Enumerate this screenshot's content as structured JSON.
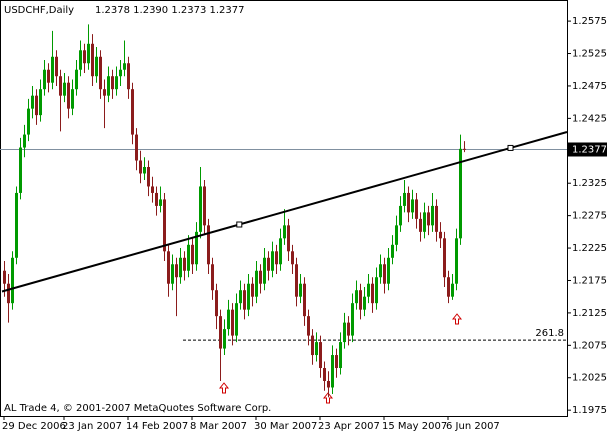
{
  "chart_data": {
    "type": "candlestick",
    "title": "USDCHF,Daily",
    "last_bar_label": "1.2378 1.2390 1.2373 1.2377",
    "footer": "AL Trade 4, © 2001-2007 MetaQuotes Software Corp.",
    "up_color": "#009a00",
    "down_color": "#8b1c1c",
    "categories": [
      "29 Dec 2006",
      null,
      null,
      null,
      null,
      null,
      null,
      null,
      null,
      null,
      null,
      null,
      null,
      null,
      null,
      "23 Jan 2007",
      null,
      null,
      null,
      null,
      null,
      null,
      null,
      null,
      null,
      null,
      null,
      null,
      null,
      null,
      null,
      "14 Feb 2007",
      null,
      null,
      null,
      null,
      null,
      null,
      null,
      null,
      null,
      null,
      null,
      null,
      null,
      null,
      null,
      "8 Mar 2007",
      null,
      null,
      null,
      null,
      null,
      null,
      null,
      null,
      null,
      null,
      null,
      null,
      null,
      null,
      null,
      "30 Mar 2007",
      null,
      null,
      null,
      null,
      null,
      null,
      null,
      null,
      null,
      null,
      null,
      null,
      null,
      null,
      null,
      "23 Apr 2007",
      null,
      null,
      null,
      null,
      null,
      null,
      null,
      null,
      null,
      null,
      null,
      null,
      null,
      null,
      null,
      "15 May 2007",
      null,
      null,
      null,
      null,
      null,
      null,
      null,
      null,
      null,
      null,
      null,
      null,
      null,
      null,
      null,
      "6 Jun 2007",
      null,
      null,
      null,
      null
    ],
    "open": [
      1.219,
      1.217,
      1.214,
      1.221,
      1.231,
      1.238,
      1.24,
      1.244,
      1.246,
      1.243,
      1.247,
      1.25,
      1.248,
      1.252,
      1.249,
      1.246,
      1.248,
      1.244,
      1.247,
      1.25,
      1.253,
      1.251,
      1.254,
      1.249,
      1.252,
      1.247,
      1.246,
      1.249,
      1.247,
      1.249,
      1.25,
      1.251,
      1.247,
      1.24,
      1.236,
      1.234,
      1.235,
      1.232,
      1.231,
      1.229,
      1.23,
      1.222,
      1.217,
      1.22,
      1.218,
      1.221,
      1.219,
      1.223,
      1.22,
      1.225,
      1.232,
      1.226,
      1.22,
      1.216,
      1.212,
      1.207,
      1.21,
      1.213,
      1.209,
      1.214,
      1.216,
      1.213,
      1.217,
      1.215,
      1.219,
      1.217,
      1.221,
      1.219,
      1.222,
      1.22,
      1.224,
      1.226,
      1.222,
      1.22,
      1.215,
      1.217,
      1.212,
      1.209,
      1.206,
      1.208,
      1.204,
      1.202,
      1.201,
      1.206,
      1.204,
      1.208,
      1.211,
      1.209,
      1.214,
      1.216,
      1.213,
      1.215,
      1.217,
      1.214,
      1.218,
      1.22,
      1.217,
      1.221,
      1.223,
      1.226,
      1.229,
      1.231,
      1.228,
      1.23,
      1.227,
      1.225,
      1.228,
      1.226,
      1.229,
      1.225,
      1.224,
      1.218,
      1.215,
      1.217,
      1.224,
      1.2378
    ],
    "high": [
      1.2205,
      1.2185,
      1.222,
      1.232,
      1.2395,
      1.2415,
      1.2455,
      1.2475,
      1.247,
      1.2485,
      1.2515,
      1.251,
      1.256,
      1.253,
      1.25,
      1.2495,
      1.249,
      1.2485,
      1.2515,
      1.2545,
      1.254,
      1.257,
      1.2555,
      1.2535,
      1.253,
      1.2485,
      1.2505,
      1.25,
      1.2505,
      1.2515,
      1.2545,
      1.252,
      1.248,
      1.241,
      1.2375,
      1.2365,
      1.236,
      1.2335,
      1.232,
      1.232,
      1.231,
      1.223,
      1.2215,
      1.221,
      1.2225,
      1.222,
      1.2245,
      1.224,
      1.2265,
      1.235,
      1.233,
      1.227,
      1.221,
      1.217,
      1.213,
      1.2115,
      1.2145,
      1.214,
      1.2155,
      1.2175,
      1.217,
      1.2185,
      1.218,
      1.2205,
      1.22,
      1.2225,
      1.222,
      1.2235,
      1.223,
      1.2255,
      1.2285,
      1.227,
      1.223,
      1.221,
      1.2185,
      1.218,
      1.213,
      1.21,
      1.2095,
      1.209,
      1.205,
      1.2035,
      1.2075,
      1.207,
      1.2095,
      1.2125,
      1.212,
      1.2155,
      1.2175,
      1.217,
      1.2165,
      1.2185,
      1.218,
      1.2195,
      1.2215,
      1.221,
      1.2225,
      1.2245,
      1.2275,
      1.2305,
      1.233,
      1.232,
      1.2315,
      1.231,
      1.228,
      1.2295,
      1.229,
      1.231,
      1.23,
      1.2265,
      1.225,
      1.219,
      1.2185,
      1.2255,
      1.24,
      1.239
    ],
    "low": [
      1.215,
      1.211,
      1.213,
      1.22,
      1.23,
      1.2365,
      1.239,
      1.2425,
      1.2415,
      1.242,
      1.246,
      1.2465,
      1.247,
      1.2475,
      1.2405,
      1.245,
      1.2425,
      1.243,
      1.246,
      1.249,
      1.2495,
      1.25,
      1.2475,
      1.248,
      1.2455,
      1.241,
      1.245,
      1.2455,
      1.246,
      1.2475,
      1.249,
      1.2455,
      1.2385,
      1.2345,
      1.2325,
      1.233,
      1.2305,
      1.2295,
      1.2275,
      1.228,
      1.2205,
      1.215,
      1.216,
      1.212,
      1.217,
      1.2175,
      1.218,
      1.2185,
      1.219,
      1.224,
      1.2245,
      1.2185,
      1.2145,
      1.21,
      1.202,
      1.206,
      1.209,
      1.2075,
      1.208,
      1.213,
      1.2115,
      1.212,
      1.2135,
      1.214,
      1.2155,
      1.216,
      1.2175,
      1.218,
      1.2185,
      1.219,
      1.223,
      1.2205,
      1.2185,
      1.2135,
      1.214,
      1.2105,
      1.2075,
      1.2045,
      1.205,
      1.2025,
      1.2005,
      1.1995,
      1.2,
      1.2025,
      1.203,
      1.207,
      1.2075,
      1.208,
      1.213,
      1.2115,
      1.212,
      1.214,
      1.2125,
      1.213,
      1.217,
      1.2155,
      1.216,
      1.22,
      1.222,
      1.225,
      1.228,
      1.2265,
      1.227,
      1.2255,
      1.2235,
      1.224,
      1.2245,
      1.225,
      1.2235,
      1.2225,
      1.2165,
      1.214,
      1.2145,
      1.216,
      1.223,
      1.2373
    ],
    "close": [
      1.217,
      1.214,
      1.221,
      1.231,
      1.238,
      1.24,
      1.244,
      1.246,
      1.243,
      1.247,
      1.25,
      1.248,
      1.252,
      1.249,
      1.246,
      1.248,
      1.244,
      1.247,
      1.25,
      1.253,
      1.251,
      1.254,
      1.249,
      1.252,
      1.247,
      1.246,
      1.249,
      1.247,
      1.249,
      1.25,
      1.251,
      1.247,
      1.24,
      1.236,
      1.234,
      1.235,
      1.232,
      1.231,
      1.229,
      1.23,
      1.222,
      1.217,
      1.22,
      1.218,
      1.221,
      1.219,
      1.223,
      1.22,
      1.225,
      1.232,
      1.226,
      1.22,
      1.216,
      1.212,
      1.207,
      1.21,
      1.213,
      1.209,
      1.214,
      1.216,
      1.213,
      1.217,
      1.215,
      1.219,
      1.217,
      1.221,
      1.219,
      1.222,
      1.22,
      1.224,
      1.226,
      1.222,
      1.22,
      1.215,
      1.217,
      1.212,
      1.209,
      1.206,
      1.208,
      1.204,
      1.202,
      1.201,
      1.206,
      1.204,
      1.208,
      1.211,
      1.209,
      1.214,
      1.216,
      1.213,
      1.215,
      1.217,
      1.214,
      1.218,
      1.22,
      1.217,
      1.221,
      1.223,
      1.226,
      1.229,
      1.231,
      1.228,
      1.23,
      1.227,
      1.225,
      1.228,
      1.226,
      1.229,
      1.225,
      1.224,
      1.218,
      1.215,
      1.217,
      1.224,
      1.2378,
      1.2377
    ],
    "ylim": [
      1.1966,
      1.2606
    ],
    "yticks": [
      1.1975,
      1.2025,
      1.2075,
      1.2125,
      1.2175,
      1.2225,
      1.2275,
      1.2325,
      1.2425,
      1.2475,
      1.2525,
      1.2575
    ],
    "current_price": 1.2377,
    "trendline": {
      "start": 1.2158,
      "end": 1.2404
    },
    "fibo_level": {
      "label": "261.8",
      "price": 1.2083
    }
  }
}
